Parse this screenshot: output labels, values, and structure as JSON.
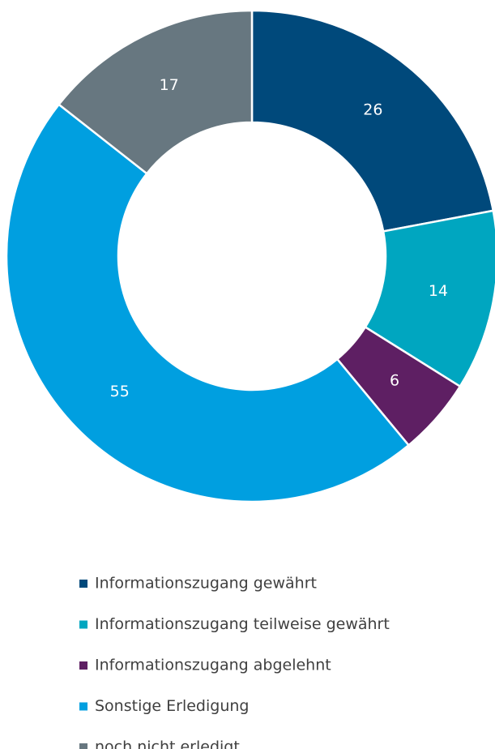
{
  "chart_data": {
    "type": "donut",
    "categories": [
      "Informationszugang gewährt",
      "Informationszugang teilweise gewährt",
      "Informationszugang abgelehnt",
      "Sonstige Erledigung",
      "noch nicht erledigt"
    ],
    "values": [
      26,
      14,
      6,
      55,
      17
    ],
    "colors": [
      "#00497b",
      "#00a6c0",
      "#5e1f63",
      "#009fe0",
      "#677780"
    ],
    "legend": "bottom"
  }
}
